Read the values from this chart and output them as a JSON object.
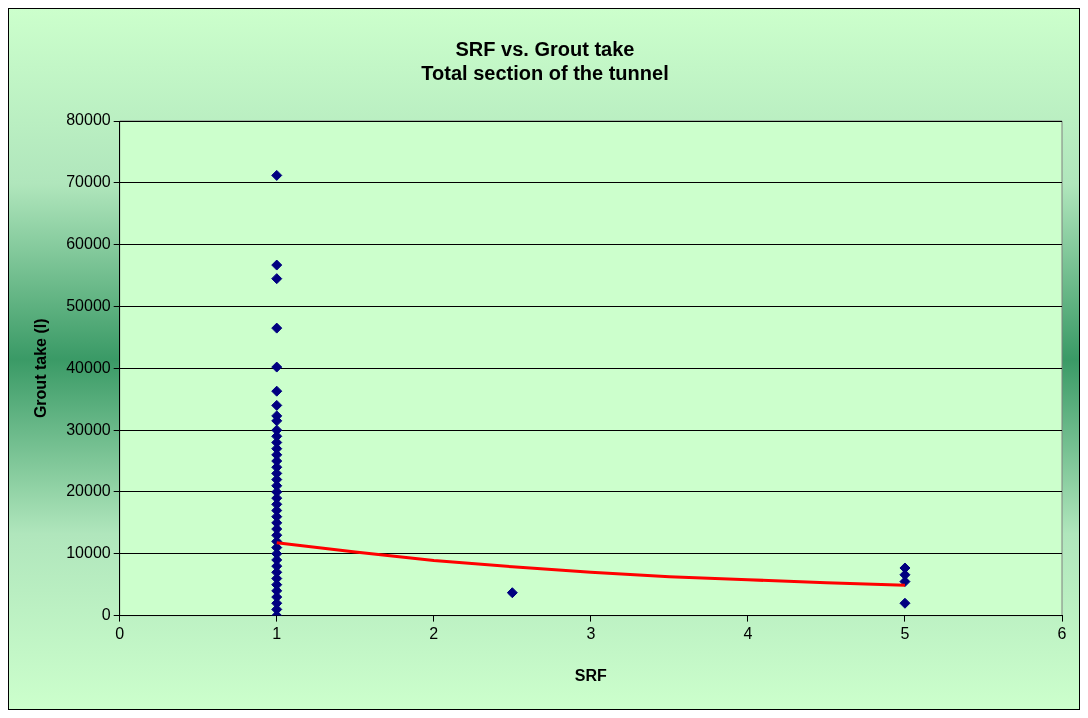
{
  "chart_data": {
    "type": "scatter",
    "title": "SRF vs. Grout take",
    "subtitle": "Total section of the tunnel",
    "xlabel": "SRF",
    "ylabel": "Grout take (l)",
    "xlim": [
      0,
      6
    ],
    "xticks": [
      0,
      1,
      2,
      3,
      4,
      5,
      6
    ],
    "ylim": [
      0,
      80000
    ],
    "yticks": [
      0,
      10000,
      20000,
      30000,
      40000,
      50000,
      60000,
      70000,
      80000
    ],
    "grid": "y",
    "legend": false,
    "marker": "diamond",
    "series": [
      {
        "type": "scatter",
        "color": "#000080",
        "x": [
          1,
          1,
          1,
          1,
          1,
          1,
          1,
          1,
          1,
          1,
          1,
          1,
          1,
          1,
          1,
          1,
          1,
          1,
          1,
          1,
          1,
          1,
          1,
          1,
          1,
          1,
          1,
          1,
          1,
          1,
          1,
          1,
          1,
          1,
          1,
          1,
          1,
          1,
          1,
          1,
          2.5,
          5,
          5,
          5,
          5
        ],
        "values": [
          71200,
          56700,
          54500,
          46500,
          40200,
          36300,
          34000,
          32300,
          31500,
          30000,
          29000,
          28000,
          27000,
          26000,
          25000,
          24000,
          23000,
          22000,
          21000,
          20000,
          19000,
          18000,
          17000,
          16000,
          15000,
          14000,
          13000,
          12000,
          11000,
          10000,
          9000,
          8000,
          7000,
          6000,
          5000,
          4000,
          3000,
          2000,
          1000,
          0,
          3700,
          7700,
          6600,
          5500,
          2000
        ]
      },
      {
        "type": "line",
        "color": "#ff0000",
        "marker": "none",
        "x": [
          1,
          1.5,
          2,
          2.5,
          3,
          3.5,
          4,
          4.5,
          5
        ],
        "values": [
          11800,
          10300,
          8900,
          7900,
          7000,
          6300,
          5800,
          5300,
          4900
        ]
      }
    ]
  }
}
